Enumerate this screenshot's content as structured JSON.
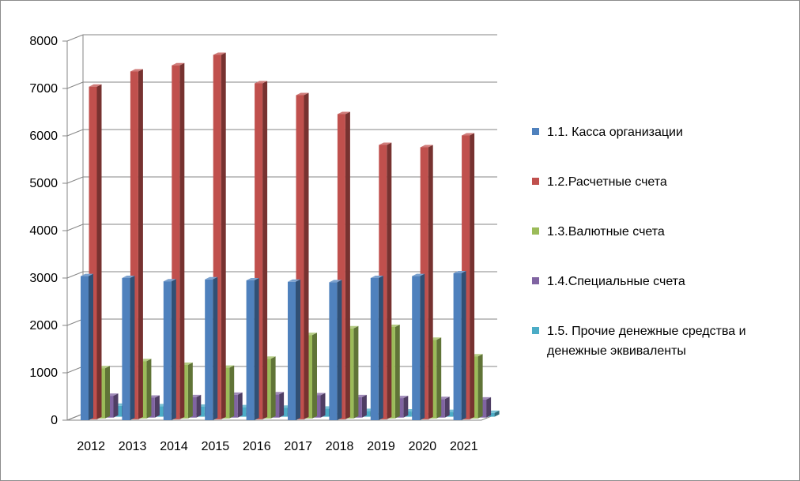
{
  "chart_data": {
    "type": "bar",
    "title": "",
    "xlabel": "",
    "ylabel": "",
    "ylim": [
      0,
      8000
    ],
    "y_ticks": [
      0,
      1000,
      2000,
      3000,
      4000,
      5000,
      6000,
      7000,
      8000
    ],
    "grid": true,
    "legend_position": "right",
    "categories": [
      "2012",
      "2013",
      "2014",
      "2015",
      "2016",
      "2017",
      "2018",
      "2019",
      "2020",
      "2021"
    ],
    "series": [
      {
        "name": "1.1. Касса организации",
        "legend_lines": [
          "1.1. Касса организации"
        ],
        "color": "#4f81bd",
        "values": [
          3040,
          3000,
          2930,
          2970,
          2950,
          2920,
          2910,
          3000,
          3040,
          3100
        ]
      },
      {
        "name": "1.2.Расчетные счета",
        "legend_lines": [
          "1.2.Расчетные счета"
        ],
        "color": "#c0504d",
        "values": [
          7020,
          7340,
          7470,
          7690,
          7090,
          6840,
          6440,
          5790,
          5740,
          5990
        ]
      },
      {
        "name": "1.3.Валютные счета",
        "legend_lines": [
          "1.3.Валютные счета"
        ],
        "color": "#9bbb59",
        "values": [
          1060,
          1210,
          1130,
          1070,
          1260,
          1760,
          1900,
          1930,
          1660,
          1310
        ]
      },
      {
        "name": "1.4.Специальные счета",
        "legend_lines": [
          "1.4.Специальные счета"
        ],
        "color": "#8064a2",
        "values": [
          460,
          420,
          430,
          480,
          490,
          470,
          430,
          410,
          390,
          380
        ]
      },
      {
        "name": "1.5. Прочие денежные средства и денежные эквиваленты",
        "legend_lines": [
          "1.5. Прочие денежные средства и",
          "денежные эквиваленты"
        ],
        "color": "#4bacc6",
        "values": [
          230,
          220,
          210,
          200,
          190,
          170,
          120,
          110,
          100,
          80
        ]
      }
    ]
  }
}
